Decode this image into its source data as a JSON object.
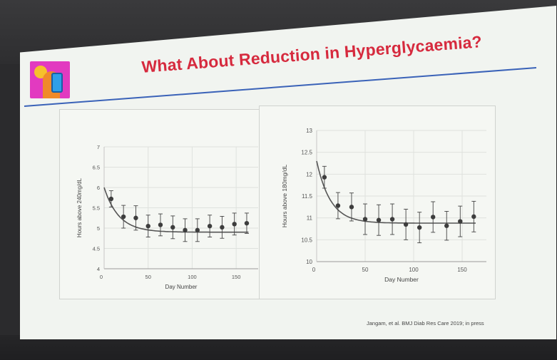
{
  "slide": {
    "title": "What About Reduction in Hyperglycaemia?",
    "citation": "Jangam, et al.  BMJ Diab Res Care 2019; in press",
    "logo_icon": "diabetes-app-logo-icon",
    "title_color": "#d62a3e",
    "rule_color": "#3a62b8"
  },
  "chart_data": [
    {
      "type": "scatter",
      "xlabel": "Day Number",
      "ylabel": "Hours above 240mg/dL",
      "xlim": [
        0,
        175
      ],
      "ylim": [
        4,
        7
      ],
      "xticks": [
        50,
        100,
        150
      ],
      "yticks": [
        4,
        4.5,
        5,
        5.5,
        6,
        6.5,
        7
      ],
      "ytick_labels": [
        "4",
        "4.5",
        "5",
        "5.5",
        "6",
        "6.5",
        "7"
      ],
      "x_zero_label": "0",
      "grid": true,
      "points": [
        {
          "x": 8,
          "y": 5.72,
          "err": 0.2
        },
        {
          "x": 22,
          "y": 5.28,
          "err": 0.28
        },
        {
          "x": 36,
          "y": 5.25,
          "err": 0.3
        },
        {
          "x": 50,
          "y": 5.05,
          "err": 0.27
        },
        {
          "x": 64,
          "y": 5.08,
          "err": 0.27
        },
        {
          "x": 78,
          "y": 5.02,
          "err": 0.28
        },
        {
          "x": 92,
          "y": 4.95,
          "err": 0.28
        },
        {
          "x": 106,
          "y": 4.95,
          "err": 0.28
        },
        {
          "x": 120,
          "y": 5.05,
          "err": 0.27
        },
        {
          "x": 134,
          "y": 5.02,
          "err": 0.27
        },
        {
          "x": 148,
          "y": 5.1,
          "err": 0.27
        },
        {
          "x": 162,
          "y": 5.12,
          "err": 0.25
        }
      ],
      "fit": {
        "form": "exponential_decay",
        "asymptote": 4.9,
        "initial": 6.0,
        "rate": 0.06
      }
    },
    {
      "type": "scatter",
      "xlabel": "Day Number",
      "ylabel": "Hours above 180mg/dL",
      "xlim": [
        0,
        175
      ],
      "ylim": [
        10,
        13
      ],
      "xticks": [
        50,
        100,
        150
      ],
      "yticks": [
        10,
        10.5,
        11,
        11.5,
        12,
        12.5,
        13
      ],
      "ytick_labels": [
        "10",
        "10.5",
        "11",
        "11.5",
        "12",
        "12.5",
        "13"
      ],
      "x_zero_label": "0",
      "grid": true,
      "points": [
        {
          "x": 8,
          "y": 11.93,
          "err": 0.25
        },
        {
          "x": 22,
          "y": 11.28,
          "err": 0.3
        },
        {
          "x": 36,
          "y": 11.25,
          "err": 0.32
        },
        {
          "x": 50,
          "y": 10.97,
          "err": 0.35
        },
        {
          "x": 64,
          "y": 10.95,
          "err": 0.35
        },
        {
          "x": 78,
          "y": 10.97,
          "err": 0.35
        },
        {
          "x": 92,
          "y": 10.85,
          "err": 0.35
        },
        {
          "x": 106,
          "y": 10.78,
          "err": 0.35
        },
        {
          "x": 120,
          "y": 11.02,
          "err": 0.35
        },
        {
          "x": 134,
          "y": 10.82,
          "err": 0.33
        },
        {
          "x": 148,
          "y": 10.92,
          "err": 0.35
        },
        {
          "x": 162,
          "y": 11.03,
          "err": 0.35
        }
      ],
      "fit": {
        "form": "exponential_decay",
        "asymptote": 10.88,
        "initial": 12.3,
        "rate": 0.07
      }
    }
  ]
}
